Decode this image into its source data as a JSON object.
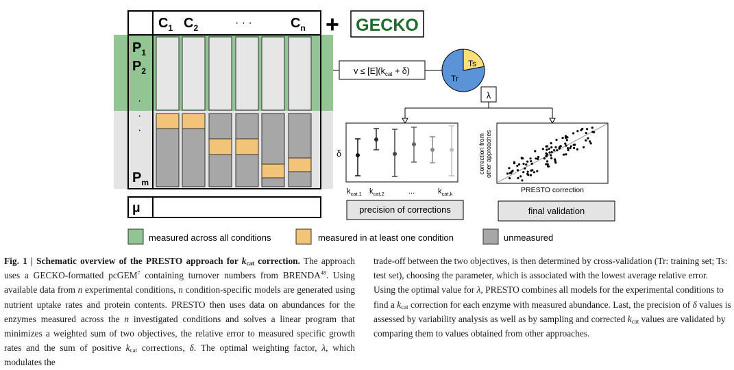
{
  "matrix": {
    "conditions": {
      "c1": "C",
      "c1_sub": "1",
      "c2": "C",
      "c2_sub": "2",
      "dots": "· · ·",
      "cn": "C",
      "cn_sub": "n"
    },
    "proteins": {
      "p1": "P",
      "p1_sub": "1",
      "p2": "P",
      "p2_sub": "2",
      "dots": "·",
      "pm": "P",
      "pm_sub": "m"
    },
    "growth_label": "μ"
  },
  "plus": "+",
  "gecko_label": "GECKO",
  "constraint": {
    "text_prefix": "v ≤ [E](k",
    "text_sub": "cat",
    "text_suffix": " + δ)"
  },
  "pie": {
    "tr_label": "Tr",
    "ts_label": "Ts",
    "train_fraction": 0.78,
    "tr_color": "#5b93d8",
    "ts_color": "#fbe07a"
  },
  "lambda_label": "λ",
  "precision_plot": {
    "delta_label": "δ",
    "xlabels": [
      {
        "main": "k",
        "sub": "cat,1"
      },
      {
        "main": "k",
        "sub": "cat,2"
      },
      {
        "main": "...",
        "sub": ""
      },
      {
        "main": "k",
        "sub": "cat,k"
      }
    ],
    "title": "precision of corrections"
  },
  "validation_plot": {
    "ylabel_line1": "correction from",
    "ylabel_line2": "other approaches",
    "xlabel": "PRESTO correction",
    "title": "final validation"
  },
  "legend": [
    {
      "label": "measured across all conditions",
      "color": "#92c593"
    },
    {
      "label": "measured in at least one condition",
      "color": "#f1c479"
    },
    {
      "label": "unmeasured",
      "color": "#a7a7a7"
    }
  ],
  "caption_left": {
    "fig": "Fig. 1 | ",
    "title_a": "Schematic overview of the PRESTO approach for ",
    "title_k": "k",
    "title_sub": "cat",
    "title_b": " correction.",
    "t1": " The approach uses a GECKO-formatted pcGEM",
    "ref1": "7",
    "t2": " containing turnover numbers from BRENDA",
    "ref2": "48",
    "t3": ". Using available data from ",
    "n1": "n",
    "t4": " experimental conditions, ",
    "n2": "n",
    "t5": " condition-specific models are generated using nutrient uptake rates and protein contents. PRESTO then uses data on abundances for the enzymes measured across the ",
    "n3": "n",
    "t6": " investigated conditions and solves a linear program that minimizes a weighted sum of two objectives, the relative error to measured specific growth rates and the sum of positive ",
    "k1": "k",
    "k1sub": "cat",
    "t7": " corrections, ",
    "delta": "δ",
    "t8": ". The optimal weighting factor, ",
    "lambda": "λ",
    "t9": ", which modulates the"
  },
  "caption_right": {
    "t1": "trade-off between the two objectives, is then determined by cross-validation (Tr: training set; Ts: test set), choosing the parameter, which is associated with the lowest average relative error. Using the optimal value for ",
    "lambda": "λ",
    "t2": ", PRESTO combines all models for the experimental conditions to find a ",
    "k1": "k",
    "k1sub": "cat",
    "t3": " correction for each enzyme with measured abundance. Last, the precision of ",
    "delta": "δ",
    "t4": " values is assessed by variability analysis as well as by sampling and corrected ",
    "k2": "k",
    "k2sub": "cat",
    "t5": " values are validated by comparing them to values obtained from other approaches."
  }
}
